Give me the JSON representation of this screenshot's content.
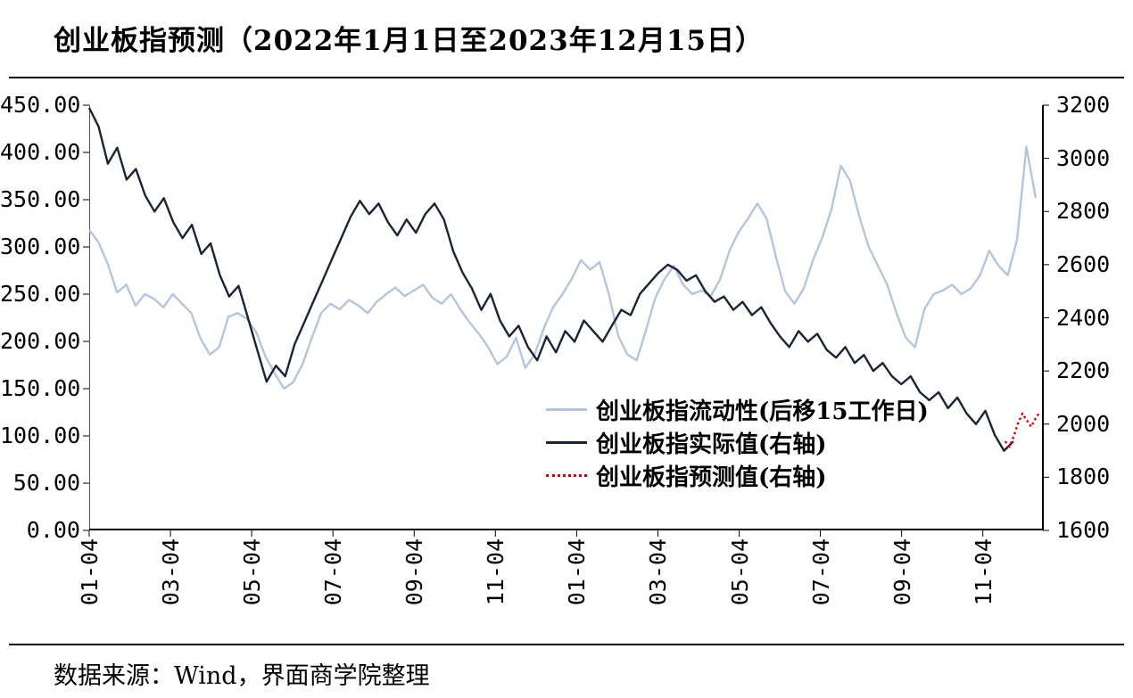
{
  "page": {
    "title": "创业板指预测（2022年1月1日至2023年12月15日）",
    "footer": "数据来源：Wind，界面商学院整理"
  },
  "legend": {
    "items": [
      {
        "label": "创业板指流动性(后移15工作日)",
        "color": "#b3c6dd",
        "style": "solid"
      },
      {
        "label": "创业板指实际值(右轴)",
        "color": "#1b2435",
        "style": "solid"
      },
      {
        "label": "创业板指预测值(右轴)",
        "color": "#cc0000",
        "style": "dotted"
      }
    ]
  },
  "chart_data": {
    "type": "line",
    "title": "创业板指预测（2022年1月1日至2023年12月15日）",
    "grid": false,
    "legend_position": "inside-right-middle",
    "x_domain": [
      0,
      23.5
    ],
    "x_tick_months": [
      0,
      2,
      4,
      6,
      8,
      10,
      12,
      14,
      16,
      18,
      20,
      22
    ],
    "x_tick_labels": [
      "01-04",
      "03-04",
      "05-04",
      "07-04",
      "09-04",
      "11-04",
      "01-04",
      "03-04",
      "05-04",
      "07-04",
      "09-04",
      "11-04"
    ],
    "y_left": {
      "label": "",
      "domain": [
        0,
        450
      ],
      "ticks": [
        "450.00",
        "400.00",
        "350.00",
        "300.00",
        "250.00",
        "200.00",
        "150.00",
        "100.00",
        "50.00",
        "0.00"
      ]
    },
    "y_right": {
      "label": "",
      "domain": [
        1600,
        3200
      ],
      "ticks": [
        "3200",
        "3000",
        "2800",
        "2600",
        "2400",
        "2200",
        "2000",
        "1800",
        "1600"
      ]
    },
    "series": [
      {
        "id": "liquidity",
        "name": "创业板指流动性(后移15工作日)",
        "axis": "left",
        "color": "#b3c6dd",
        "width": 2.4,
        "dash": null,
        "x0": 0,
        "x1": 23.3,
        "values": [
          318,
          305,
          282,
          252,
          260,
          238,
          250,
          245,
          236,
          250,
          240,
          230,
          203,
          186,
          194,
          226,
          230,
          224,
          210,
          184,
          166,
          150,
          157,
          176,
          204,
          230,
          240,
          234,
          244,
          238,
          230,
          242,
          250,
          257,
          248,
          254,
          260,
          246,
          240,
          250,
          234,
          220,
          208,
          194,
          176,
          184,
          204,
          172,
          186,
          214,
          236,
          250,
          266,
          286,
          276,
          284,
          250,
          206,
          186,
          180,
          212,
          246,
          266,
          280,
          260,
          250,
          254,
          248,
          266,
          296,
          316,
          330,
          346,
          330,
          290,
          253,
          240,
          256,
          286,
          310,
          340,
          386,
          370,
          332,
          300,
          280,
          260,
          230,
          204,
          194,
          234,
          250,
          254,
          260,
          250,
          256,
          270,
          296,
          280,
          270,
          308,
          406,
          352
        ]
      },
      {
        "id": "actual",
        "name": "创业板指实际值(右轴)",
        "axis": "right",
        "color": "#1b2435",
        "width": 2.4,
        "dash": null,
        "x0": 0,
        "x1": 22.75,
        "values": [
          3190,
          3120,
          2980,
          3040,
          2920,
          2960,
          2860,
          2800,
          2850,
          2760,
          2700,
          2750,
          2640,
          2680,
          2560,
          2480,
          2520,
          2400,
          2280,
          2160,
          2220,
          2180,
          2300,
          2380,
          2460,
          2540,
          2620,
          2700,
          2780,
          2840,
          2790,
          2830,
          2760,
          2710,
          2770,
          2720,
          2790,
          2830,
          2770,
          2650,
          2570,
          2510,
          2430,
          2490,
          2390,
          2330,
          2370,
          2290,
          2240,
          2330,
          2270,
          2350,
          2310,
          2390,
          2350,
          2310,
          2370,
          2430,
          2410,
          2490,
          2530,
          2570,
          2600,
          2580,
          2540,
          2560,
          2500,
          2460,
          2480,
          2430,
          2460,
          2410,
          2440,
          2380,
          2330,
          2290,
          2350,
          2310,
          2340,
          2280,
          2250,
          2290,
          2230,
          2260,
          2200,
          2230,
          2180,
          2150,
          2180,
          2120,
          2090,
          2120,
          2060,
          2100,
          2040,
          2000,
          2050,
          1960,
          1900,
          1935
        ]
      },
      {
        "id": "forecast",
        "name": "创业板指预测值(右轴)",
        "axis": "right",
        "color": "#cc0000",
        "width": 2.4,
        "dash": "2.5 3.2",
        "x0": 22.55,
        "x1": 23.4,
        "values": [
          1935,
          1915,
          1955,
          2005,
          2040,
          2015,
          1990,
          2020,
          2045
        ]
      }
    ]
  }
}
